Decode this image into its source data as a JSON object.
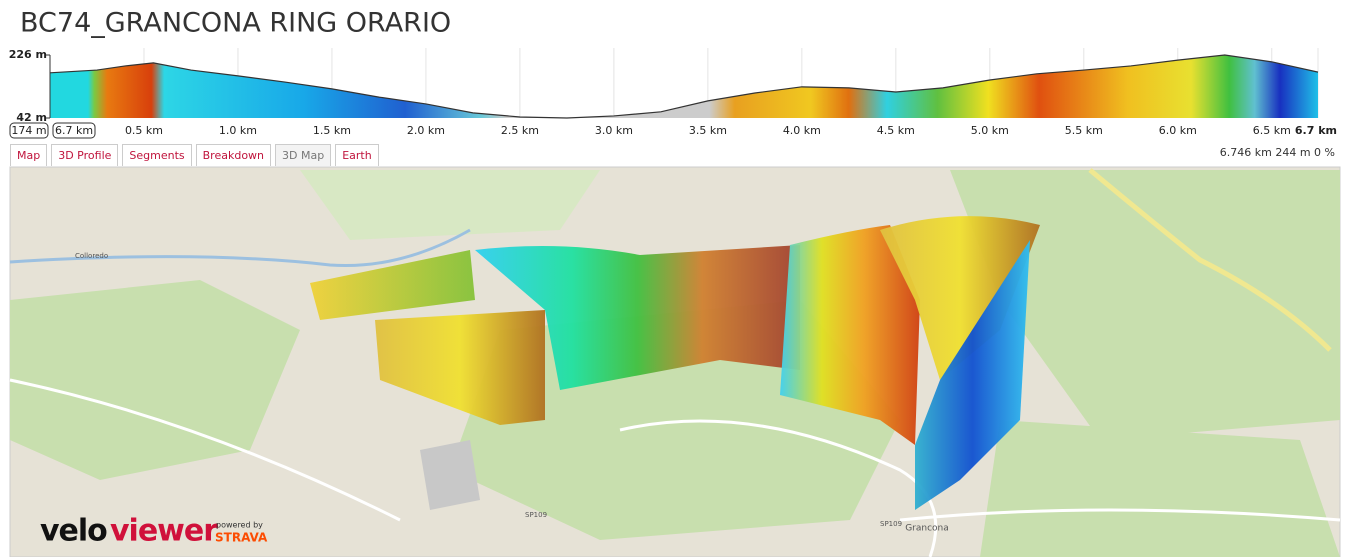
{
  "title": "BC74_GRANCONA RING ORARIO",
  "chart_data": {
    "type": "area",
    "x": [
      0,
      0.25,
      0.4,
      0.55,
      0.75,
      1.0,
      1.25,
      1.5,
      1.75,
      2.0,
      2.25,
      2.5,
      2.75,
      3.0,
      3.25,
      3.5,
      3.75,
      4.0,
      4.25,
      4.5,
      4.75,
      5.0,
      5.25,
      5.5,
      5.75,
      6.0,
      6.25,
      6.5,
      6.746
    ],
    "values": [
      174,
      182,
      194,
      203,
      182,
      165,
      147,
      127,
      103,
      83,
      57,
      45,
      42,
      48,
      60,
      92,
      115,
      133,
      130,
      118,
      130,
      153,
      171,
      182,
      194,
      211,
      226,
      206,
      176
    ],
    "xlim": [
      0,
      6.746
    ],
    "ylim": [
      42,
      226
    ],
    "yticks": [
      {
        "value": 42,
        "label": "42 m"
      },
      {
        "value": 226,
        "label": "226 m"
      }
    ],
    "xticks": [
      {
        "value": 0.5,
        "label": "0.5 km"
      },
      {
        "value": 1.0,
        "label": "1.0 km"
      },
      {
        "value": 1.5,
        "label": "1.5 km"
      },
      {
        "value": 2.0,
        "label": "2.0 km"
      },
      {
        "value": 2.5,
        "label": "2.5 km"
      },
      {
        "value": 3.0,
        "label": "3.0 km"
      },
      {
        "value": 3.5,
        "label": "3.5 km"
      },
      {
        "value": 4.0,
        "label": "4.0 km"
      },
      {
        "value": 4.5,
        "label": "4.5 km"
      },
      {
        "value": 5.0,
        "label": "5.0 km"
      },
      {
        "value": 5.5,
        "label": "5.5 km"
      },
      {
        "value": 6.0,
        "label": "6.0 km"
      },
      {
        "value": 6.5,
        "label": "6.5 km"
      },
      {
        "value": 6.746,
        "label": "6.7 km"
      }
    ],
    "cursor_labels": [
      "174 m",
      "6.7 km"
    ]
  },
  "tabs": [
    "Map",
    "3D Profile",
    "Segments",
    "Breakdown",
    "3D Map",
    "Earth"
  ],
  "stats": "6.746 km 244 m 0 %",
  "map": {
    "labels": [
      "Grancona",
      "SP109",
      "SP109",
      "Colloredo"
    ]
  },
  "logo": {
    "velo": "velo",
    "viewer": "viewer",
    "powered_by": "powered by",
    "strava": "STRAVA"
  }
}
